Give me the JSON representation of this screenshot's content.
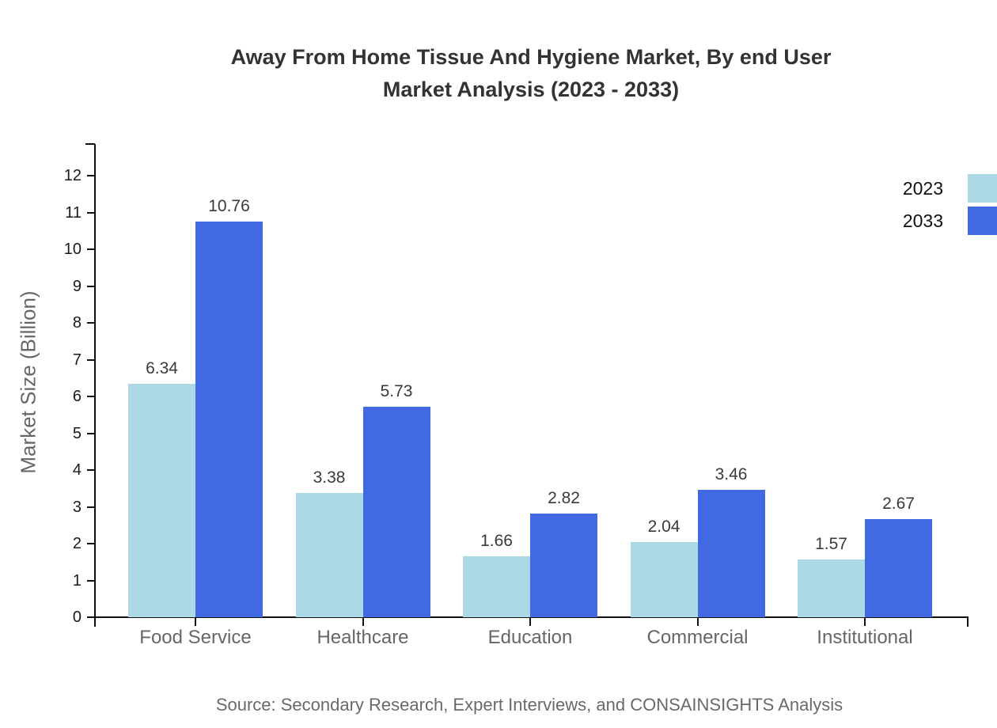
{
  "title": {
    "line1": "Away From Home Tissue And Hygiene Market, By end User",
    "line2": "Market Analysis (2023 - 2033)"
  },
  "source": "Source: Secondary Research, Expert Interviews, and CONSAINSIGHTS Analysis",
  "chart_data": {
    "type": "bar",
    "title": "Away From Home Tissue And Hygiene Market, By end User Market Analysis (2023 - 2033)",
    "categories": [
      "Food Service",
      "Healthcare",
      "Education",
      "Commercial",
      "Institutional"
    ],
    "series": [
      {
        "name": "2023",
        "color": "#ADD8E6",
        "values": [
          6.34,
          3.38,
          1.66,
          2.04,
          1.57
        ]
      },
      {
        "name": "2033",
        "color": "#4169E1",
        "values": [
          10.76,
          5.73,
          2.82,
          3.46,
          2.67
        ]
      }
    ],
    "xlabel": "",
    "ylabel": "Market Size (Billion)",
    "ylim": [
      0,
      12
    ],
    "yticks": [
      0,
      1,
      2,
      3,
      4,
      5,
      6,
      7,
      8,
      9,
      10,
      11,
      12
    ],
    "grid": false,
    "legend_position": "top-right",
    "value_labels": true
  },
  "colors": {
    "axis": "#111111",
    "tick_label": "#1a1a1a",
    "category_label": "#666666",
    "value_label": "#3a3a3a",
    "title_text": "#333333",
    "source_text": "#696969",
    "series_2023": "#ADD8E6",
    "series_2033": "#4169E1"
  }
}
